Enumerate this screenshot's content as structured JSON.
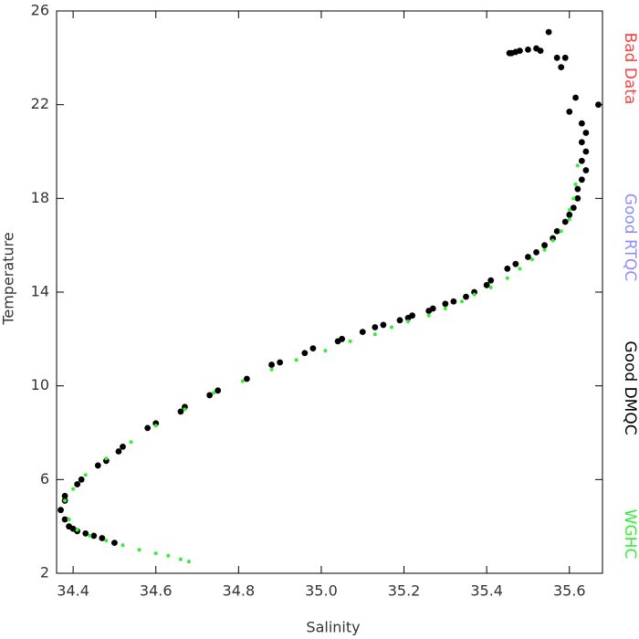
{
  "chart_data": {
    "type": "scatter",
    "x_label": "Salinity",
    "y_label": "Temperature",
    "xlim": [
      34.36,
      35.68
    ],
    "ylim": [
      2,
      26
    ],
    "xticks": [
      34.4,
      34.6,
      34.8,
      {
        "value": 35.0,
        "label": "35.0"
      },
      35.2,
      35.4,
      35.6
    ],
    "yticks": [
      2,
      6,
      10,
      14,
      18,
      22,
      26
    ],
    "grid": false,
    "series": [
      {
        "name": "Bad Data",
        "color": "#ff4040",
        "x": [],
        "y": []
      },
      {
        "name": "Good RTQC",
        "color": "#8c8cff",
        "x": [],
        "y": []
      },
      {
        "name": "Good DMQC",
        "color": "#000000",
        "x": [
          34.5,
          34.47,
          34.45,
          34.43,
          34.41,
          34.4,
          34.39,
          34.38,
          34.37,
          34.38,
          34.38,
          34.41,
          34.42,
          34.46,
          34.48,
          34.51,
          34.52,
          34.58,
          34.6,
          34.66,
          34.67,
          34.73,
          34.75,
          34.82,
          34.88,
          34.9,
          34.96,
          34.98,
          35.04,
          35.05,
          35.1,
          35.13,
          35.15,
          35.19,
          35.21,
          35.22,
          35.26,
          35.27,
          35.3,
          35.32,
          35.35,
          35.37,
          35.4,
          35.41,
          35.45,
          35.47,
          35.5,
          35.52,
          35.54,
          35.56,
          35.57,
          35.59,
          35.6,
          35.61,
          35.62,
          35.62,
          35.63,
          35.64,
          35.63,
          35.64,
          35.63,
          35.64,
          35.63,
          35.6,
          35.615,
          35.67,
          35.46,
          35.47,
          35.48,
          35.5,
          35.52,
          35.53,
          35.57,
          35.58,
          35.59,
          35.55,
          35.455
        ],
        "y": [
          3.3,
          3.5,
          3.6,
          3.7,
          3.8,
          3.9,
          4.0,
          4.3,
          4.7,
          5.1,
          5.3,
          5.8,
          6.0,
          6.6,
          6.8,
          7.2,
          7.4,
          8.2,
          8.4,
          8.9,
          9.1,
          9.6,
          9.8,
          10.3,
          10.9,
          11.0,
          11.4,
          11.6,
          11.9,
          12.0,
          12.3,
          12.5,
          12.6,
          12.8,
          12.9,
          13.0,
          13.2,
          13.3,
          13.5,
          13.6,
          13.8,
          14.0,
          14.3,
          14.5,
          15.0,
          15.2,
          15.5,
          15.7,
          16.0,
          16.3,
          16.6,
          17.0,
          17.3,
          17.6,
          18.0,
          18.4,
          18.8,
          19.2,
          19.6,
          20.0,
          20.4,
          20.8,
          21.2,
          21.7,
          22.3,
          22.0,
          24.2,
          24.25,
          24.3,
          24.35,
          24.4,
          24.3,
          24.0,
          23.6,
          24.0,
          25.1,
          24.2
        ]
      },
      {
        "name": "WGHC",
        "color": "#33ee33",
        "x": [
          34.68,
          34.66,
          34.63,
          34.6,
          34.56,
          34.52,
          34.48,
          34.44,
          34.41,
          34.39,
          34.38,
          34.4,
          34.43,
          34.48,
          34.54,
          34.6,
          34.67,
          34.74,
          34.81,
          34.88,
          34.94,
          35.01,
          35.07,
          35.13,
          35.17,
          35.21,
          35.26,
          35.3,
          35.34,
          35.37,
          35.41,
          35.45,
          35.48,
          35.51,
          35.54,
          35.56,
          35.58,
          35.6,
          35.6,
          35.61,
          35.615,
          35.62
        ],
        "y": [
          2.5,
          2.6,
          2.75,
          2.85,
          3.0,
          3.2,
          3.4,
          3.6,
          3.85,
          4.3,
          5.1,
          5.6,
          6.2,
          6.9,
          7.6,
          8.3,
          9.0,
          9.7,
          10.2,
          10.7,
          11.1,
          11.5,
          11.9,
          12.2,
          12.5,
          12.75,
          13.0,
          13.3,
          13.6,
          13.9,
          14.2,
          14.6,
          15.0,
          15.4,
          15.8,
          16.2,
          16.6,
          17.1,
          17.5,
          18.0,
          18.6,
          19.4
        ]
      }
    ]
  }
}
